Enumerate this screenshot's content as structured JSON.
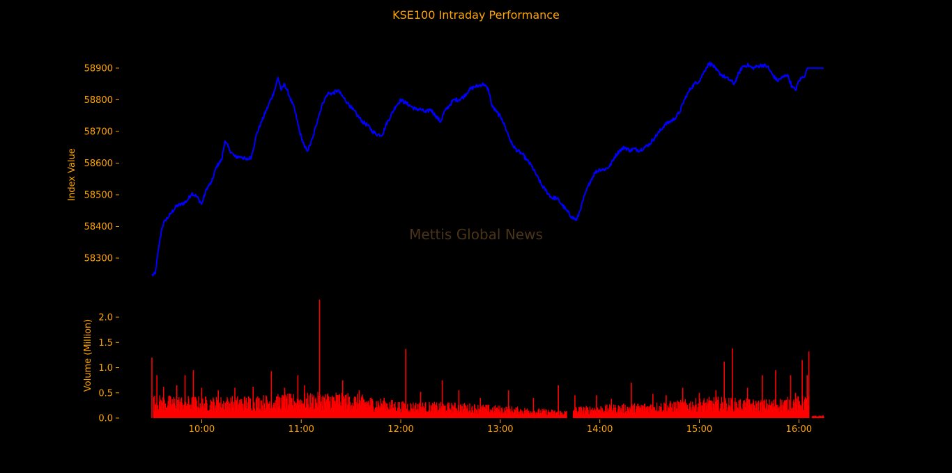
{
  "colors": {
    "background": "#000000",
    "text": "#FFA500",
    "price_line": "#0000FF",
    "volume_bar": "#FF0000",
    "watermark": "#4a3418"
  },
  "title": "KSE100 Intraday Performance",
  "watermark": "Mettis Global News",
  "chart_data": [
    {
      "type": "line",
      "name": "index",
      "ylabel": "Index Value",
      "xlim": [
        "09:30",
        "16:15"
      ],
      "ylim": [
        58210,
        58935
      ],
      "yticks": [
        58300,
        58400,
        58500,
        58600,
        58700,
        58800,
        58900
      ],
      "points": [
        [
          "09:30",
          58245
        ],
        [
          "09:32",
          58250
        ],
        [
          "09:34",
          58330
        ],
        [
          "09:36",
          58395
        ],
        [
          "09:38",
          58420
        ],
        [
          "09:40",
          58430
        ],
        [
          "09:42",
          58445
        ],
        [
          "09:45",
          58465
        ],
        [
          "09:48",
          58470
        ],
        [
          "09:51",
          58480
        ],
        [
          "09:54",
          58505
        ],
        [
          "09:57",
          58495
        ],
        [
          "10:00",
          58470
        ],
        [
          "10:03",
          58520
        ],
        [
          "10:06",
          58540
        ],
        [
          "10:09",
          58590
        ],
        [
          "10:12",
          58610
        ],
        [
          "10:14",
          58670
        ],
        [
          "10:17",
          58640
        ],
        [
          "10:20",
          58620
        ],
        [
          "10:24",
          58620
        ],
        [
          "10:27",
          58610
        ],
        [
          "10:30",
          58620
        ],
        [
          "10:33",
          58690
        ],
        [
          "10:36",
          58730
        ],
        [
          "10:40",
          58780
        ],
        [
          "10:44",
          58830
        ],
        [
          "10:46",
          58870
        ],
        [
          "10:48",
          58830
        ],
        [
          "10:50",
          58850
        ],
        [
          "10:53",
          58810
        ],
        [
          "10:56",
          58770
        ],
        [
          "10:59",
          58700
        ],
        [
          "11:02",
          58650
        ],
        [
          "11:04",
          58640
        ],
        [
          "11:07",
          58680
        ],
        [
          "11:10",
          58740
        ],
        [
          "11:13",
          58790
        ],
        [
          "11:16",
          58820
        ],
        [
          "11:19",
          58820
        ],
        [
          "11:22",
          58830
        ],
        [
          "11:25",
          58810
        ],
        [
          "11:28",
          58790
        ],
        [
          "11:31",
          58770
        ],
        [
          "11:34",
          58750
        ],
        [
          "11:37",
          58730
        ],
        [
          "11:40",
          58720
        ],
        [
          "11:43",
          58700
        ],
        [
          "11:46",
          58690
        ],
        [
          "11:49",
          58690
        ],
        [
          "11:51",
          58720
        ],
        [
          "11:54",
          58750
        ],
        [
          "11:57",
          58780
        ],
        [
          "12:00",
          58800
        ],
        [
          "12:03",
          58790
        ],
        [
          "12:06",
          58780
        ],
        [
          "12:09",
          58770
        ],
        [
          "12:12",
          58770
        ],
        [
          "12:15",
          58760
        ],
        [
          "12:18",
          58770
        ],
        [
          "12:21",
          58750
        ],
        [
          "12:24",
          58730
        ],
        [
          "12:26",
          58760
        ],
        [
          "12:29",
          58780
        ],
        [
          "12:32",
          58800
        ],
        [
          "12:35",
          58800
        ],
        [
          "12:38",
          58810
        ],
        [
          "12:41",
          58830
        ],
        [
          "12:44",
          58840
        ],
        [
          "12:47",
          58845
        ],
        [
          "12:50",
          58850
        ],
        [
          "12:53",
          58830
        ],
        [
          "12:55",
          58780
        ],
        [
          "12:58",
          58760
        ],
        [
          "13:01",
          58740
        ],
        [
          "13:04",
          58700
        ],
        [
          "13:07",
          58660
        ],
        [
          "13:10",
          58640
        ],
        [
          "13:13",
          58630
        ],
        [
          "13:16",
          58610
        ],
        [
          "13:19",
          58590
        ],
        [
          "13:22",
          58560
        ],
        [
          "13:25",
          58530
        ],
        [
          "13:28",
          58510
        ],
        [
          "13:31",
          58490
        ],
        [
          "13:34",
          58490
        ],
        [
          "13:37",
          58470
        ],
        [
          "13:40",
          58450
        ],
        [
          "13:43",
          58430
        ],
        [
          "13:46",
          58420
        ],
        [
          "13:48",
          58450
        ],
        [
          "13:51",
          58500
        ],
        [
          "13:54",
          58540
        ],
        [
          "13:57",
          58570
        ],
        [
          "14:00",
          58580
        ],
        [
          "14:03",
          58580
        ],
        [
          "14:06",
          58590
        ],
        [
          "14:09",
          58620
        ],
        [
          "14:12",
          58640
        ],
        [
          "14:15",
          58650
        ],
        [
          "14:18",
          58640
        ],
        [
          "14:21",
          58645
        ],
        [
          "14:24",
          58640
        ],
        [
          "14:27",
          58650
        ],
        [
          "14:30",
          58660
        ],
        [
          "14:33",
          58680
        ],
        [
          "14:36",
          58700
        ],
        [
          "14:39",
          58720
        ],
        [
          "14:42",
          58730
        ],
        [
          "14:45",
          58740
        ],
        [
          "14:48",
          58760
        ],
        [
          "14:51",
          58800
        ],
        [
          "14:54",
          58830
        ],
        [
          "14:57",
          58850
        ],
        [
          "15:00",
          58860
        ],
        [
          "15:02",
          58880
        ],
        [
          "15:04",
          58900
        ],
        [
          "15:06",
          58915
        ],
        [
          "15:08",
          58910
        ],
        [
          "15:10",
          58895
        ],
        [
          "15:13",
          58880
        ],
        [
          "15:16",
          58870
        ],
        [
          "15:19",
          58860
        ],
        [
          "15:21",
          58850
        ],
        [
          "15:23",
          58875
        ],
        [
          "15:26",
          58905
        ],
        [
          "15:29",
          58910
        ],
        [
          "15:32",
          58900
        ],
        [
          "15:35",
          58905
        ],
        [
          "15:38",
          58910
        ],
        [
          "15:41",
          58905
        ],
        [
          "15:44",
          58880
        ],
        [
          "15:47",
          58860
        ],
        [
          "15:50",
          58870
        ],
        [
          "15:53",
          58880
        ],
        [
          "15:56",
          58840
        ],
        [
          "15:58",
          58830
        ],
        [
          "16:00",
          58860
        ],
        [
          "16:02",
          58870
        ],
        [
          "16:04",
          58880
        ],
        [
          "16:05",
          58900
        ],
        [
          "16:15",
          58900
        ]
      ]
    },
    {
      "type": "bar",
      "name": "volume",
      "ylabel": "Volume (Million)",
      "xlim": [
        "09:30",
        "16:15"
      ],
      "ylim": [
        0,
        2.4
      ],
      "yticks": [
        0.0,
        0.5,
        1.0,
        1.5,
        2.0
      ],
      "ytick_labels": [
        "0.0",
        "0.5",
        "1.0",
        "1.5",
        "2.0"
      ],
      "xticks": [
        "10:00",
        "11:00",
        "12:00",
        "13:00",
        "14:00",
        "15:00",
        "16:00"
      ],
      "sessions": [
        {
          "start": "09:31",
          "end": "13:40",
          "base": [
            [
              0,
              0.3
            ],
            [
              0.15,
              0.28
            ],
            [
              0.35,
              0.32
            ],
            [
              0.45,
              0.35
            ],
            [
              0.6,
              0.22
            ],
            [
              0.75,
              0.2
            ],
            [
              0.9,
              0.14
            ],
            [
              1.0,
              0.1
            ]
          ]
        },
        {
          "start": "13:44",
          "end": "16:06",
          "base": [
            [
              0,
              0.15
            ],
            [
              0.4,
              0.22
            ],
            [
              0.6,
              0.28
            ],
            [
              0.8,
              0.24
            ],
            [
              1.0,
              0.3
            ]
          ]
        },
        {
          "start": "16:08",
          "end": "16:15",
          "base": [
            [
              0,
              0.03
            ],
            [
              1.0,
              0.04
            ]
          ]
        }
      ],
      "spikes": [
        [
          "09:30",
          1.2
        ],
        [
          "09:33",
          0.85
        ],
        [
          "09:37",
          0.62
        ],
        [
          "09:45",
          0.65
        ],
        [
          "09:50",
          0.85
        ],
        [
          "09:55",
          0.95
        ],
        [
          "10:00",
          0.6
        ],
        [
          "10:10",
          0.55
        ],
        [
          "10:20",
          0.6
        ],
        [
          "10:31",
          0.62
        ],
        [
          "10:42",
          0.93
        ],
        [
          "10:50",
          0.6
        ],
        [
          "10:58",
          0.85
        ],
        [
          "11:02",
          0.65
        ],
        [
          "11:11",
          2.35
        ],
        [
          "11:25",
          0.75
        ],
        [
          "11:35",
          0.55
        ],
        [
          "11:50",
          0.4
        ],
        [
          "12:03",
          1.37
        ],
        [
          "12:12",
          0.52
        ],
        [
          "12:25",
          0.75
        ],
        [
          "12:35",
          0.55
        ],
        [
          "12:48",
          0.4
        ],
        [
          "13:05",
          0.55
        ],
        [
          "13:20",
          0.4
        ],
        [
          "13:35",
          0.65
        ],
        [
          "13:45",
          0.45
        ],
        [
          "13:58",
          0.45
        ],
        [
          "14:07",
          0.38
        ],
        [
          "14:19",
          0.7
        ],
        [
          "14:32",
          0.48
        ],
        [
          "14:40",
          0.45
        ],
        [
          "14:50",
          0.6
        ],
        [
          "15:00",
          0.5
        ],
        [
          "15:10",
          0.55
        ],
        [
          "15:15",
          1.12
        ],
        [
          "15:20",
          1.38
        ],
        [
          "15:29",
          0.6
        ],
        [
          "15:38",
          0.85
        ],
        [
          "15:46",
          0.95
        ],
        [
          "15:55",
          0.85
        ],
        [
          "15:58",
          0.5
        ],
        [
          "16:02",
          1.15
        ],
        [
          "16:05",
          0.85
        ],
        [
          "16:06",
          1.32
        ]
      ]
    }
  ]
}
